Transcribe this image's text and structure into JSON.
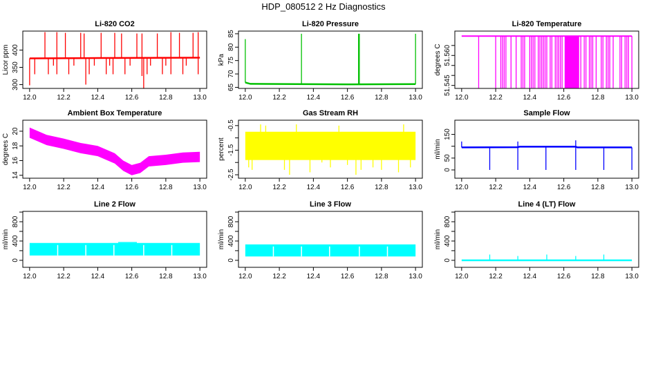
{
  "main_title": "HDP_080512  2 Hz Diagnostics",
  "chart_data": [
    {
      "type": "line",
      "title": "Li-820 CO2",
      "ylabel": "Licor ppm",
      "color": "#ff0000",
      "xlim": [
        11.96,
        13.04
      ],
      "ylim": [
        289,
        455
      ],
      "xticks": [
        "12.0",
        "12.2",
        "12.4",
        "12.6",
        "12.8",
        "13.0"
      ],
      "yticks": [
        300,
        350,
        400
      ],
      "ytick_labels": [
        "300",
        "350",
        "400"
      ],
      "baseline": [
        [
          12.0,
          376
        ],
        [
          12.4,
          377
        ],
        [
          13.0,
          378
        ]
      ],
      "spikes": [
        [
          12.09,
          452
        ],
        [
          12.16,
          452
        ],
        [
          12.21,
          450
        ],
        [
          12.3,
          450
        ],
        [
          12.32,
          448
        ],
        [
          12.42,
          450
        ],
        [
          12.5,
          450
        ],
        [
          12.54,
          448
        ],
        [
          12.63,
          448
        ],
        [
          12.66,
          448
        ],
        [
          12.75,
          448
        ],
        [
          12.83,
          452
        ],
        [
          12.88,
          450
        ],
        [
          12.96,
          450
        ],
        [
          12.99,
          452
        ],
        [
          12.0,
          298
        ],
        [
          12.03,
          330
        ],
        [
          12.11,
          330
        ],
        [
          12.14,
          355
        ],
        [
          12.16,
          330
        ],
        [
          12.23,
          330
        ],
        [
          12.26,
          355
        ],
        [
          12.33,
          300
        ],
        [
          12.35,
          330
        ],
        [
          12.38,
          355
        ],
        [
          12.45,
          330
        ],
        [
          12.47,
          355
        ],
        [
          12.49,
          330
        ],
        [
          12.56,
          330
        ],
        [
          12.59,
          355
        ],
        [
          12.66,
          325
        ],
        [
          12.67,
          290
        ],
        [
          12.69,
          330
        ],
        [
          12.71,
          355
        ],
        [
          12.78,
          330
        ],
        [
          12.8,
          355
        ],
        [
          12.83,
          330
        ],
        [
          12.9,
          330
        ],
        [
          12.92,
          355
        ],
        [
          12.99,
          330
        ]
      ]
    },
    {
      "type": "line",
      "title": "Li-820 Pressure",
      "ylabel": "kPa",
      "color": "#00c000",
      "xlim": [
        11.96,
        13.04
      ],
      "ylim": [
        64.6,
        86
      ],
      "xticks": [
        "12.0",
        "12.2",
        "12.4",
        "12.6",
        "12.8",
        "13.0"
      ],
      "yticks": [
        65,
        70,
        75,
        80,
        85
      ],
      "ytick_labels": [
        "65",
        "70",
        "75",
        "80",
        "85"
      ],
      "baseline": [
        [
          12.0,
          66.8
        ],
        [
          12.03,
          66.3
        ],
        [
          12.3,
          66.2
        ],
        [
          12.6,
          66.1
        ],
        [
          13.0,
          66.2
        ]
      ],
      "spikes": [
        [
          12.0,
          83
        ],
        [
          12.33,
          85
        ],
        [
          12.665,
          85
        ],
        [
          12.67,
          85
        ],
        [
          13.0,
          85
        ]
      ]
    },
    {
      "type": "line",
      "title": "Li-820 Temperature",
      "ylabel": "degrees C",
      "color": "#ff00ff",
      "xlim": [
        11.96,
        13.04
      ],
      "ylim": [
        51.5435,
        51.5722
      ],
      "xticks": [
        "12.0",
        "12.2",
        "12.4",
        "12.6",
        "12.8",
        "13.0"
      ],
      "yticks": [
        51.545,
        51.55,
        51.555,
        51.56,
        51.565
      ],
      "ytick_labels": [
        "51.545",
        "",
        "",
        "51.560",
        ""
      ],
      "high": 51.5697,
      "low": 51.5437,
      "solid_range": [
        12.605,
        12.69
      ],
      "dropouts": [
        12.1,
        12.2,
        12.23,
        12.24,
        12.25,
        12.26,
        12.29,
        12.32,
        12.35,
        12.36,
        12.37,
        12.4,
        12.41,
        12.42,
        12.43,
        12.45,
        12.46,
        12.47,
        12.48,
        12.49,
        12.5,
        12.52,
        12.53,
        12.55,
        12.56,
        12.57,
        12.58,
        12.59,
        12.7,
        12.72,
        12.73,
        12.75,
        12.76,
        12.77,
        12.79,
        12.82,
        12.83,
        12.85,
        12.86,
        12.87,
        12.89,
        12.93,
        12.94,
        12.96,
        12.97,
        12.98,
        13.0
      ]
    },
    {
      "type": "area",
      "title": "Ambient Box Temperature",
      "ylabel": "degrees C",
      "color": "#ff00ff",
      "xlim": [
        11.96,
        13.04
      ],
      "ylim": [
        13.6,
        21.5
      ],
      "xticks": [
        "12.0",
        "12.2",
        "12.4",
        "12.6",
        "12.8",
        "13.0"
      ],
      "yticks": [
        14,
        16,
        18,
        20
      ],
      "ytick_labels": [
        "14",
        "16",
        "18",
        "20"
      ],
      "center": [
        [
          12.0,
          19.8
        ],
        [
          12.1,
          18.8
        ],
        [
          12.2,
          18.3
        ],
        [
          12.3,
          17.7
        ],
        [
          12.4,
          17.3
        ],
        [
          12.5,
          16.3
        ],
        [
          12.55,
          15.3
        ],
        [
          12.6,
          14.7
        ],
        [
          12.65,
          15.0
        ],
        [
          12.7,
          15.9
        ],
        [
          12.8,
          16.1
        ],
        [
          12.9,
          16.4
        ],
        [
          13.0,
          16.5
        ]
      ],
      "halfwidth": 0.7
    },
    {
      "type": "area",
      "title": "Gas Stream RH",
      "ylabel": "percent",
      "color": "#ffff00",
      "xlim": [
        11.96,
        13.04
      ],
      "ylim": [
        -2.64,
        -0.28
      ],
      "xticks": [
        "12.0",
        "12.2",
        "12.4",
        "12.6",
        "12.8",
        "13.0"
      ],
      "yticks": [
        -2.5,
        -2,
        -1.5,
        -1,
        -0.5
      ],
      "ytick_labels": [
        "-2.5",
        "",
        "-1.5",
        "",
        "-0.5"
      ],
      "band": [
        -1.9,
        -0.75
      ],
      "spikes": [
        [
          12.02,
          -2.2
        ],
        [
          12.04,
          -2.3
        ],
        [
          12.09,
          -0.45
        ],
        [
          12.12,
          -0.5
        ],
        [
          12.23,
          -2.3
        ],
        [
          12.26,
          -2.5
        ],
        [
          12.3,
          -0.45
        ],
        [
          12.38,
          -2.4
        ],
        [
          12.45,
          -2.0
        ],
        [
          12.5,
          -2.2
        ],
        [
          12.55,
          -0.5
        ],
        [
          12.6,
          -2.1
        ],
        [
          12.65,
          -2.5
        ],
        [
          12.68,
          -2.3
        ],
        [
          12.75,
          -2.2
        ],
        [
          12.8,
          -2.3
        ],
        [
          12.9,
          -2.4
        ],
        [
          12.93,
          -0.45
        ],
        [
          12.97,
          -2.2
        ]
      ]
    },
    {
      "type": "line",
      "title": "Sample Flow",
      "ylabel": "ml/min",
      "color": "#0000ff",
      "xlim": [
        11.96,
        13.04
      ],
      "ylim": [
        -35,
        210
      ],
      "xticks": [
        "12.0",
        "12.2",
        "12.4",
        "12.6",
        "12.8",
        "13.0"
      ],
      "yticks": [
        0,
        50,
        100,
        150
      ],
      "ytick_labels": [
        "0",
        "50",
        "",
        "150"
      ],
      "baseline": [
        [
          12.0,
          95
        ],
        [
          12.33,
          96
        ],
        [
          12.34,
          98
        ],
        [
          12.67,
          98
        ],
        [
          12.68,
          95
        ],
        [
          13.0,
          95
        ]
      ],
      "spikes": [
        [
          12.0,
          120
        ],
        [
          12.165,
          0
        ],
        [
          12.33,
          0
        ],
        [
          12.33,
          120
        ],
        [
          12.495,
          0
        ],
        [
          12.67,
          0
        ],
        [
          12.67,
          125
        ],
        [
          12.835,
          0
        ],
        [
          13.0,
          0
        ]
      ]
    },
    {
      "type": "area",
      "title": "Line 2 Flow",
      "ylabel": "ml/min",
      "color": "#00ffff",
      "xlim": [
        11.96,
        13.04
      ],
      "ylim": [
        -145,
        1015
      ],
      "xticks": [
        "12.0",
        "12.2",
        "12.4",
        "12.6",
        "12.8",
        "13.0"
      ],
      "yticks": [
        0,
        200,
        400,
        600,
        800,
        1000
      ],
      "ytick_labels": [
        "0",
        "",
        "400",
        "",
        "800",
        ""
      ],
      "band": [
        100,
        360
      ],
      "gaps": [
        12.165,
        12.33,
        12.495,
        12.67,
        12.835
      ],
      "raised": [
        [
          12.52,
          12.63,
          380
        ]
      ]
    },
    {
      "type": "area",
      "title": "Line 3 Flow",
      "ylabel": "ml/min",
      "color": "#00ffff",
      "xlim": [
        11.96,
        13.04
      ],
      "ylim": [
        -145,
        1015
      ],
      "xticks": [
        "12.0",
        "12.2",
        "12.4",
        "12.6",
        "12.8",
        "13.0"
      ],
      "yticks": [
        0,
        200,
        400,
        600,
        800,
        1000
      ],
      "ytick_labels": [
        "0",
        "",
        "400",
        "",
        "800",
        ""
      ],
      "band": [
        80,
        330
      ],
      "gaps": [
        12.165,
        12.33,
        12.495,
        12.67,
        12.835
      ],
      "raised": []
    },
    {
      "type": "line",
      "title": "Line 4 (LT) Flow",
      "ylabel": "ml/min",
      "color": "#00ffff",
      "xlim": [
        11.96,
        13.04
      ],
      "ylim": [
        -145,
        1015
      ],
      "xticks": [
        "12.0",
        "12.2",
        "12.4",
        "12.6",
        "12.8",
        "13.0"
      ],
      "yticks": [
        0,
        200,
        400,
        600,
        800,
        1000
      ],
      "ytick_labels": [
        "0",
        "",
        "400",
        "",
        "800",
        ""
      ],
      "baseline": [
        [
          12.0,
          0
        ],
        [
          13.0,
          0
        ]
      ],
      "spikes": [
        [
          12.165,
          120
        ],
        [
          12.33,
          90
        ],
        [
          12.5,
          120
        ],
        [
          12.67,
          90
        ],
        [
          12.835,
          120
        ]
      ]
    }
  ]
}
